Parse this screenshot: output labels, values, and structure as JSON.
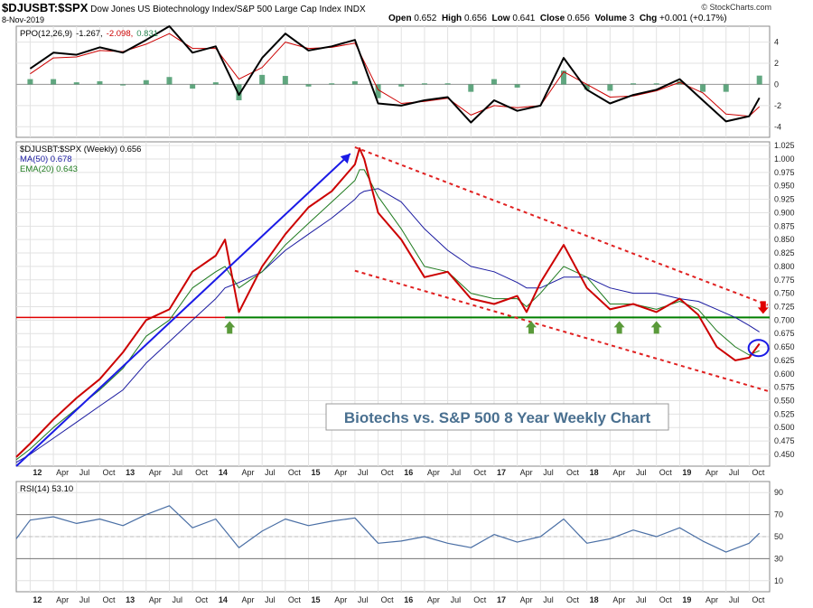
{
  "header": {
    "symbol": "$DJUSBT:$SPX",
    "description": "Dow Jones US Biotechnology Index/S&P 500 Large Cap Index",
    "exchange": "INDX",
    "date": "8-Nov-2019",
    "open_label": "Open",
    "open": "0.652",
    "high_label": "High",
    "high": "0.656",
    "low_label": "Low",
    "low": "0.641",
    "close_label": "Close",
    "close": "0.656",
    "volume_label": "Volume",
    "volume": "3",
    "chg_label": "Chg",
    "chg": "+0.001 (+0.17%)",
    "credit": "© StockCharts.com"
  },
  "annotation": {
    "text": "Biotechs vs. S&P 500 8 Year Weekly Chart"
  },
  "colors": {
    "price": "#cc0000",
    "ma50": "#1a1aa0",
    "ema20": "#1f7a1f",
    "ppo_line": "#000000",
    "ppo_signal": "#cc0000",
    "histogram": "#2e8b57",
    "trend_blue": "#1a1ae6",
    "channel_red": "#e02020",
    "support": "#008000",
    "resistance": "#e00000",
    "rsi": "#4a6fa5",
    "arrow_green": "#5a9a3a"
  },
  "chart_data": [
    {
      "type": "line",
      "panel": "ppo",
      "legend": [
        {
          "text": "PPO(12,26,9)",
          "color": "#000000"
        },
        {
          "text": "-1.267,",
          "color": "#000000"
        },
        {
          "text": "-2.098,",
          "color": "#cc0000"
        },
        {
          "text": "0.831",
          "color": "#2e8b57"
        }
      ],
      "ylim": [
        -5,
        5.5
      ],
      "y_ticks": [
        4,
        2,
        0,
        -2,
        -4
      ],
      "x": [
        2012.0,
        2012.25,
        2012.5,
        2012.75,
        2013.0,
        2013.25,
        2013.5,
        2013.75,
        2014.0,
        2014.25,
        2014.5,
        2014.75,
        2015.0,
        2015.25,
        2015.5,
        2015.75,
        2016.0,
        2016.25,
        2016.5,
        2016.75,
        2017.0,
        2017.25,
        2017.5,
        2017.75,
        2018.0,
        2018.25,
        2018.5,
        2018.75,
        2019.0,
        2019.25,
        2019.5,
        2019.75,
        2019.86
      ],
      "series": [
        {
          "values": [
            1.5,
            3.0,
            2.8,
            3.5,
            3.0,
            4.2,
            5.5,
            3.0,
            3.6,
            -1.0,
            2.5,
            4.8,
            3.2,
            3.6,
            4.2,
            -1.8,
            -2.0,
            -1.5,
            -1.2,
            -3.6,
            -1.5,
            -2.5,
            -2.0,
            2.5,
            -0.5,
            -1.8,
            -1.0,
            -0.5,
            0.5,
            -1.5,
            -3.5,
            -3.0,
            -1.267
          ]
        },
        {
          "values": [
            1.0,
            2.5,
            2.6,
            3.2,
            3.1,
            3.8,
            4.8,
            3.4,
            3.4,
            0.5,
            1.6,
            4.0,
            3.4,
            3.5,
            3.9,
            -0.5,
            -1.8,
            -1.6,
            -1.3,
            -2.9,
            -2.0,
            -2.2,
            -2.0,
            1.2,
            0.0,
            -1.2,
            -1.1,
            -0.6,
            0.2,
            -0.8,
            -2.8,
            -3.0,
            -2.098
          ]
        },
        {
          "values": [
            0.5,
            0.5,
            0.2,
            0.3,
            -0.1,
            0.4,
            0.7,
            -0.4,
            0.2,
            -1.5,
            0.9,
            0.8,
            -0.2,
            0.1,
            0.3,
            -1.3,
            -0.2,
            0.1,
            0.1,
            -0.7,
            0.5,
            -0.3,
            0.0,
            1.3,
            -0.5,
            -0.6,
            0.1,
            0.1,
            0.3,
            -0.7,
            -0.7,
            0.0,
            0.831
          ]
        }
      ]
    },
    {
      "type": "line",
      "panel": "price",
      "legend": [
        {
          "text": "$DJUSBT:$SPX (Weekly) 0.656",
          "color": "#000000"
        },
        {
          "text": "MA(50) 0.678",
          "color": "#1a1aa0"
        },
        {
          "text": "EMA(20) 0.643",
          "color": "#1f7a1f"
        }
      ],
      "ylim": [
        0.428,
        1.032
      ],
      "y_ticks": [
        1.025,
        1.0,
        0.975,
        0.95,
        0.925,
        0.9,
        0.875,
        0.85,
        0.825,
        0.8,
        0.775,
        0.75,
        0.725,
        0.7,
        0.675,
        0.65,
        0.625,
        0.6,
        0.575,
        0.55,
        0.525,
        0.5,
        0.475,
        0.45
      ],
      "x": [
        2011.85,
        2012.0,
        2012.25,
        2012.5,
        2012.75,
        2013.0,
        2013.25,
        2013.5,
        2013.75,
        2014.0,
        2014.1,
        2014.25,
        2014.5,
        2014.75,
        2015.0,
        2015.25,
        2015.5,
        2015.55,
        2015.6,
        2015.75,
        2016.0,
        2016.25,
        2016.5,
        2016.75,
        2017.0,
        2017.25,
        2017.35,
        2017.5,
        2017.75,
        2018.0,
        2018.25,
        2018.5,
        2018.75,
        2019.0,
        2019.2,
        2019.4,
        2019.6,
        2019.75,
        2019.86
      ],
      "series": [
        {
          "values": [
            0.445,
            0.47,
            0.515,
            0.555,
            0.59,
            0.64,
            0.7,
            0.72,
            0.79,
            0.82,
            0.85,
            0.715,
            0.8,
            0.86,
            0.91,
            0.94,
            0.99,
            1.02,
            1.0,
            0.9,
            0.85,
            0.78,
            0.79,
            0.74,
            0.73,
            0.745,
            0.715,
            0.77,
            0.84,
            0.76,
            0.72,
            0.73,
            0.715,
            0.74,
            0.71,
            0.65,
            0.625,
            0.63,
            0.656
          ]
        },
        {
          "values": [
            0.435,
            0.45,
            0.48,
            0.51,
            0.54,
            0.57,
            0.62,
            0.66,
            0.7,
            0.74,
            0.76,
            0.77,
            0.79,
            0.83,
            0.86,
            0.89,
            0.925,
            0.935,
            0.94,
            0.945,
            0.92,
            0.87,
            0.83,
            0.8,
            0.79,
            0.77,
            0.76,
            0.76,
            0.78,
            0.78,
            0.76,
            0.75,
            0.75,
            0.74,
            0.735,
            0.72,
            0.705,
            0.69,
            0.678
          ]
        },
        {
          "values": [
            0.44,
            0.46,
            0.5,
            0.535,
            0.57,
            0.61,
            0.67,
            0.7,
            0.76,
            0.79,
            0.8,
            0.76,
            0.79,
            0.84,
            0.88,
            0.92,
            0.96,
            0.98,
            0.98,
            0.93,
            0.87,
            0.8,
            0.79,
            0.75,
            0.74,
            0.74,
            0.725,
            0.75,
            0.8,
            0.78,
            0.73,
            0.73,
            0.72,
            0.735,
            0.72,
            0.68,
            0.65,
            0.635,
            0.643
          ]
        }
      ],
      "annotations": {
        "support_level": 0.705,
        "trend_line": [
          [
            2011.85,
            0.428
          ],
          [
            2015.45,
            1.01
          ]
        ],
        "channel_upper": [
          [
            2015.5,
            1.022
          ],
          [
            2019.95,
            0.728
          ]
        ],
        "channel_lower": [
          [
            2015.5,
            0.792
          ],
          [
            2019.95,
            0.568
          ]
        ],
        "support_arrows": [
          2014.15,
          2017.4,
          2018.35,
          2018.75
        ],
        "resistance_arrow": 2019.9,
        "circle": [
          2019.85,
          0.648
        ]
      }
    },
    {
      "type": "line",
      "panel": "rsi",
      "legend": [
        {
          "text": "RSI(14) 53.10",
          "color": "#000000"
        }
      ],
      "ylim": [
        0,
        100
      ],
      "y_ticks": [
        90,
        70,
        50,
        30,
        10
      ],
      "reference_lines": [
        70,
        50,
        30
      ],
      "x": [
        2011.85,
        2012.0,
        2012.25,
        2012.5,
        2012.75,
        2013.0,
        2013.25,
        2013.5,
        2013.75,
        2014.0,
        2014.25,
        2014.5,
        2014.75,
        2015.0,
        2015.25,
        2015.5,
        2015.75,
        2016.0,
        2016.25,
        2016.5,
        2016.75,
        2017.0,
        2017.25,
        2017.5,
        2017.75,
        2018.0,
        2018.25,
        2018.5,
        2018.75,
        2019.0,
        2019.25,
        2019.5,
        2019.75,
        2019.86
      ],
      "series": [
        {
          "values": [
            48,
            65,
            68,
            62,
            66,
            60,
            70,
            78,
            58,
            66,
            40,
            55,
            66,
            60,
            64,
            67,
            44,
            46,
            50,
            44,
            40,
            52,
            45,
            50,
            66,
            44,
            48,
            56,
            50,
            58,
            46,
            36,
            44,
            53.1
          ]
        }
      ]
    }
  ],
  "x_axis_labels": [
    "12",
    "Apr",
    "Jul",
    "Oct",
    "13",
    "Apr",
    "Jul",
    "Oct",
    "14",
    "Apr",
    "Jul",
    "Oct",
    "15",
    "Apr",
    "Jul",
    "Oct",
    "16",
    "Apr",
    "Jul",
    "Oct",
    "17",
    "Apr",
    "Jul",
    "Oct",
    "18",
    "Apr",
    "Jul",
    "Oct",
    "19",
    "Apr",
    "Jul",
    "Oct"
  ]
}
